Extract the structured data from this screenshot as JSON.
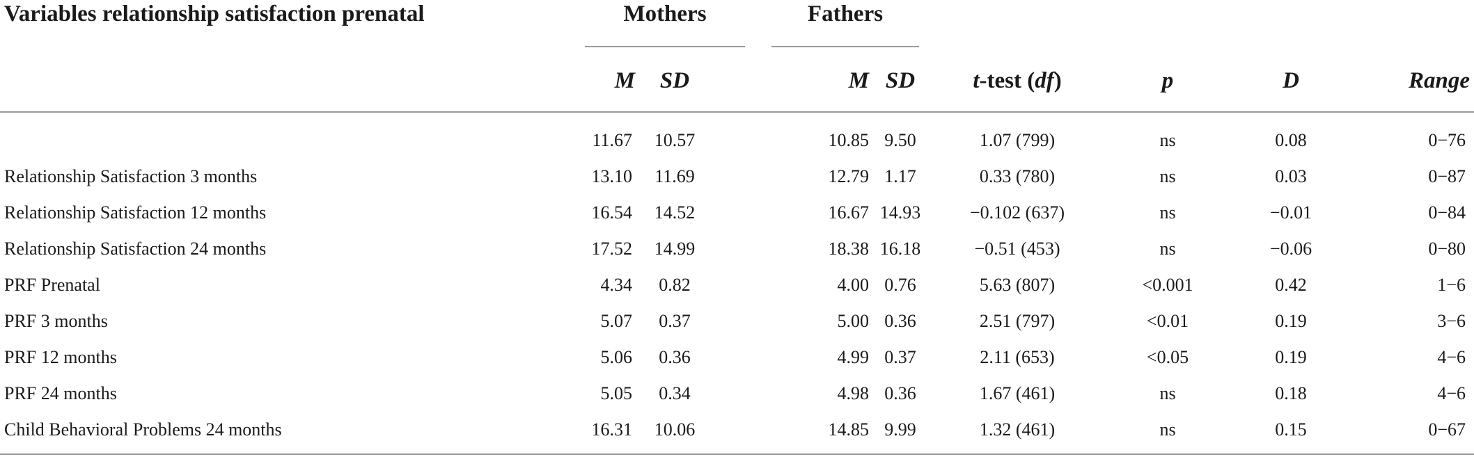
{
  "table": {
    "title_header": "Variables relationship satisfaction prenatal",
    "group_mothers": "Mothers",
    "group_fathers": "Fathers",
    "col_m_mothers": "M",
    "col_sd_mothers": "SD",
    "col_m_fathers": "M",
    "col_sd_fathers": "SD",
    "col_ttest_t": "t",
    "col_ttest_mid": "-test (",
    "col_ttest_df": "df",
    "col_ttest_end": ")",
    "col_p": "p",
    "col_d": "D",
    "col_range": "Range",
    "rows": [
      {
        "label": "",
        "m_mothers": "11.67",
        "sd_mothers": "10.57",
        "m_fathers": "10.85",
        "sd_fathers": "9.50",
        "ttest": "1.07 (799)",
        "p": "ns",
        "d": "0.08",
        "range": "0−76"
      },
      {
        "label": "Relationship Satisfaction 3 months",
        "m_mothers": "13.10",
        "sd_mothers": "11.69",
        "m_fathers": "12.79",
        "sd_fathers": "1.17",
        "ttest": "0.33 (780)",
        "p": "ns",
        "d": "0.03",
        "range": "0−87"
      },
      {
        "label": "Relationship Satisfaction 12 months",
        "m_mothers": "16.54",
        "sd_mothers": "14.52",
        "m_fathers": "16.67",
        "sd_fathers": "14.93",
        "ttest": "−0.102 (637)",
        "p": "ns",
        "d": "−0.01",
        "range": "0−84"
      },
      {
        "label": "Relationship Satisfaction 24 months",
        "m_mothers": "17.52",
        "sd_mothers": "14.99",
        "m_fathers": "18.38",
        "sd_fathers": "16.18",
        "ttest": "−0.51 (453)",
        "p": "ns",
        "d": "−0.06",
        "range": "0−80"
      },
      {
        "label": "PRF Prenatal",
        "m_mothers": "4.34",
        "sd_mothers": "0.82",
        "m_fathers": "4.00",
        "sd_fathers": "0.76",
        "ttest": "5.63 (807)",
        "p": "<0.001",
        "d": "0.42",
        "range": "1−6"
      },
      {
        "label": "PRF 3 months",
        "m_mothers": "5.07",
        "sd_mothers": "0.37",
        "m_fathers": "5.00",
        "sd_fathers": "0.36",
        "ttest": "2.51 (797)",
        "p": "<0.01",
        "d": "0.19",
        "range": "3−6"
      },
      {
        "label": "PRF 12 months",
        "m_mothers": "5.06",
        "sd_mothers": "0.36",
        "m_fathers": "4.99",
        "sd_fathers": "0.37",
        "ttest": "2.11 (653)",
        "p": "<0.05",
        "d": "0.19",
        "range": "4−6"
      },
      {
        "label": "PRF 24 months",
        "m_mothers": "5.05",
        "sd_mothers": "0.34",
        "m_fathers": "4.98",
        "sd_fathers": "0.36",
        "ttest": "1.67 (461)",
        "p": "ns",
        "d": "0.18",
        "range": "4−6"
      },
      {
        "label": "Child Behavioral Problems 24 months",
        "m_mothers": "16.31",
        "sd_mothers": "10.06",
        "m_fathers": "14.85",
        "sd_fathers": "9.99",
        "ttest": "1.32 (461)",
        "p": "ns",
        "d": "0.15",
        "range": "0−67"
      }
    ]
  }
}
